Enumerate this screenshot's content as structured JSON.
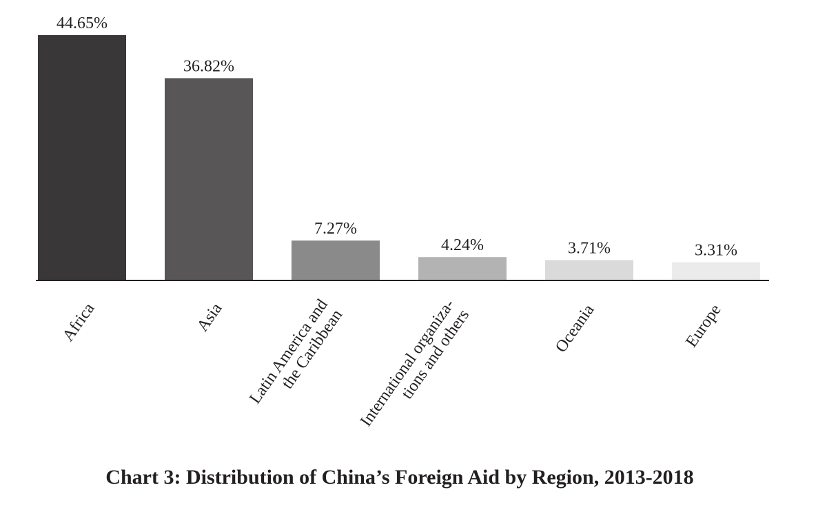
{
  "chart_data": {
    "type": "bar",
    "title": "Chart 3: Distribution of China’s Foreign Aid by Region, 2013-2018",
    "categories": [
      [
        "Africa"
      ],
      [
        "Asia"
      ],
      [
        "Latin America and",
        "the Caribbean"
      ],
      [
        "International organiza-",
        "tions and others"
      ],
      [
        "Oceania"
      ],
      [
        "Europe"
      ]
    ],
    "values": [
      44.65,
      36.82,
      7.27,
      4.24,
      3.71,
      3.31
    ],
    "value_labels": [
      "44.65%",
      "36.82%",
      "7.27%",
      "4.24%",
      "3.71%",
      "3.31%"
    ],
    "bar_colors": [
      "#3a3738",
      "#585657",
      "#8a8a8a",
      "#b2b3b2",
      "#d9dad9",
      "#ebebeb"
    ],
    "ylim": [
      0,
      44.65
    ],
    "xlabel": "",
    "ylabel": "",
    "grid": false,
    "legend": "none"
  }
}
